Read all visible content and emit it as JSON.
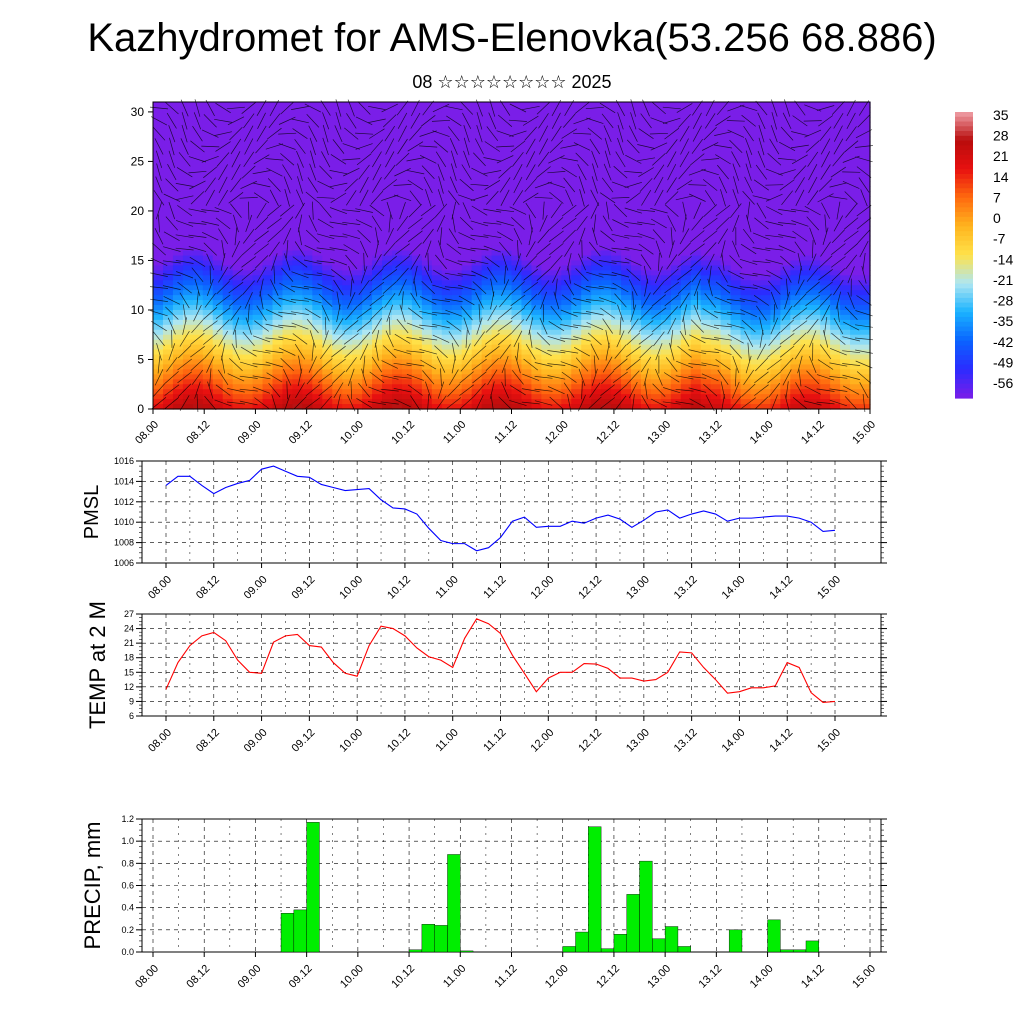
{
  "title": "Kazhydromet for AMS-Elenovka(53.256 68.886)",
  "subtitle": "08 ☆☆☆☆☆☆☆☆ 2025",
  "colors": {
    "pmsl_line": "#0000ff",
    "temp_line": "#ff0000",
    "precip_bar": "#00ee00",
    "precip_outline": "#000000"
  },
  "chart_data": [
    {
      "type": "heatmap",
      "name": "vertical-temperature-wind-section",
      "x_ticks": [
        "08.00",
        "08.12",
        "09.00",
        "09.12",
        "10.00",
        "10.12",
        "11.00",
        "11.12",
        "12.00",
        "12.12",
        "13.00",
        "13.12",
        "14.00",
        "14.12",
        "15.00"
      ],
      "y_ticks": [
        0,
        5,
        10,
        15,
        20,
        25,
        30
      ],
      "ylim": [
        0,
        31
      ],
      "colorbar_labels": [
        "35",
        "28",
        "21",
        "14",
        "7",
        "0",
        "-7",
        "-14",
        "-21",
        "-28",
        "-35",
        "-42",
        "-49",
        "-56"
      ],
      "colorbar_range": [
        -60,
        38
      ],
      "colorbar_colors": [
        "#7a1ee8",
        "#2b2bff",
        "#0a64ff",
        "#1ab3ff",
        "#aee6f2",
        "#ffe24a",
        "#ffb41e",
        "#ff6a0f",
        "#e81010",
        "#b80c0c",
        "#f0a0a8"
      ]
    },
    {
      "type": "line",
      "name": "pmsl",
      "ylabel": "PMSL",
      "x_ticks": [
        "08.00",
        "08.12",
        "09.00",
        "09.12",
        "10.00",
        "10.12",
        "11.00",
        "11.12",
        "12.00",
        "12.12",
        "13.00",
        "13.12",
        "14.00",
        "14.12",
        "15.00"
      ],
      "y_ticks": [
        1006,
        1008,
        1010,
        1012,
        1014,
        1016
      ],
      "ylim": [
        1006,
        1016
      ],
      "values": [
        1013.6,
        1014.5,
        1014.5,
        1013.6,
        1012.8,
        1013.4,
        1013.8,
        1014.1,
        1015.2,
        1015.5,
        1015.0,
        1014.5,
        1014.4,
        1013.7,
        1013.4,
        1013.1,
        1013.2,
        1013.3,
        1012.2,
        1011.4,
        1011.3,
        1010.8,
        1009.4,
        1008.2,
        1007.9,
        1007.9,
        1007.2,
        1007.5,
        1008.5,
        1010.1,
        1010.5,
        1009.5,
        1009.6,
        1009.6,
        1010.1,
        1009.9,
        1010.4,
        1010.7,
        1010.3,
        1009.5,
        1010.2,
        1011.0,
        1011.2,
        1010.4,
        1010.8,
        1011.1,
        1010.8,
        1010.1,
        1010.4,
        1010.4,
        1010.5,
        1010.6,
        1010.6,
        1010.4,
        1010.0,
        1009.1,
        1009.2
      ]
    },
    {
      "type": "line",
      "name": "temp-2m",
      "ylabel": "TEMP at 2 M",
      "x_ticks": [
        "08.00",
        "08.12",
        "09.00",
        "09.12",
        "10.00",
        "10.12",
        "11.00",
        "11.12",
        "12.00",
        "12.12",
        "13.00",
        "13.12",
        "14.00",
        "14.12",
        "15.00"
      ],
      "y_ticks": [
        6,
        9,
        12,
        15,
        18,
        21,
        24,
        27
      ],
      "ylim": [
        6,
        27
      ],
      "values": [
        11.5,
        17.0,
        20.5,
        22.5,
        23.2,
        21.5,
        17.5,
        15.0,
        14.8,
        21.2,
        22.5,
        22.8,
        20.5,
        20.2,
        17.0,
        14.8,
        14.2,
        20.5,
        24.5,
        24.0,
        22.5,
        20.0,
        18.2,
        17.5,
        16.0,
        22.0,
        26.0,
        25.0,
        23.0,
        18.5,
        14.8,
        11.0,
        13.8,
        15.0,
        15.0,
        16.8,
        16.7,
        15.8,
        13.8,
        13.8,
        13.2,
        13.5,
        15.0,
        19.2,
        19.0,
        16.0,
        13.5,
        10.7,
        11.0,
        11.8,
        11.8,
        12.2,
        17.0,
        16.0,
        10.8,
        8.8,
        9.0
      ]
    },
    {
      "type": "bar",
      "name": "precip",
      "ylabel": "PRECIP, mm",
      "x_ticks": [
        "08.00",
        "08.12",
        "09.00",
        "09.12",
        "10.00",
        "10.12",
        "11.00",
        "11.12",
        "12.00",
        "12.12",
        "13.00",
        "13.12",
        "14.00",
        "14.12",
        "15.00"
      ],
      "y_ticks": [
        "0.0",
        "0.2",
        "0.4",
        "0.6",
        "0.8",
        "1.0",
        "1.2"
      ],
      "ylim": [
        0,
        1.2
      ],
      "values": [
        0,
        0,
        0,
        0,
        0,
        0,
        0,
        0,
        0,
        0,
        0.35,
        0.38,
        1.17,
        0,
        0,
        0,
        0,
        0,
        0,
        0,
        0.02,
        0.25,
        0.24,
        0.88,
        0.01,
        0,
        0,
        0,
        0,
        0,
        0,
        0,
        0.05,
        0.18,
        1.13,
        0.03,
        0.16,
        0.52,
        0.82,
        0.12,
        0.23,
        0.05,
        0,
        0,
        0,
        0.2,
        0,
        0,
        0.29,
        0.02,
        0.02,
        0.1,
        0,
        0,
        0,
        0
      ]
    }
  ]
}
